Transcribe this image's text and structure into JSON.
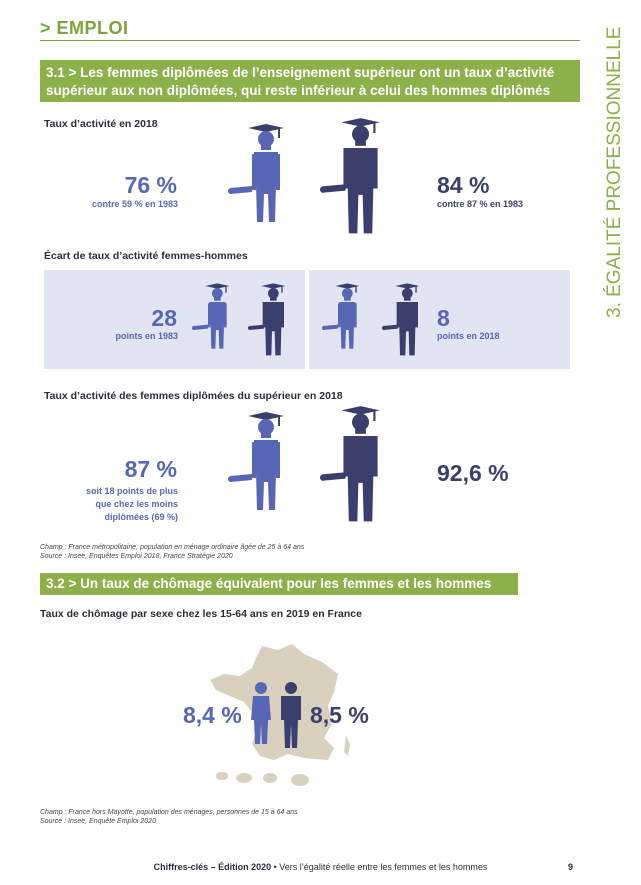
{
  "section": {
    "title": "> EMPLOI",
    "side_label": "3. ÉGALITÉ PROFESSIONNELLE"
  },
  "s31": {
    "banner": "3.1 > Les femmes diplômées de l’enseignement supérieur ont un taux d’activité supérieur aux non diplômées, qui reste inférieur à celui des hommes diplômés",
    "block1": {
      "label": "Taux d’activité en 2018",
      "women_value": "76 %",
      "women_sub": "contre 59 % en 1983",
      "men_value": "84 %",
      "men_sub": "contre 87 % en 1983"
    },
    "block2": {
      "label": "Écart de taux d’activité femmes-hommes",
      "left_value": "28",
      "left_sub": "points en 1983",
      "right_value": "8",
      "right_sub": "points en 2018"
    },
    "block3": {
      "label": "Taux d’activité des femmes diplômées du supérieur en 2018",
      "women_value": "87 %",
      "women_sub_1": "soit 18 points de plus",
      "women_sub_2": "que chez les moins",
      "women_sub_3": "diplômées (69 %)",
      "men_value": "92,6 %"
    },
    "note_1": "Champ : France métropolitaine, population en ménage ordinaire âgée de 25 à 64 ans",
    "note_2": "Source : Insee, Enquêtes Emploi 2018, France Stratégie 2020"
  },
  "s32": {
    "banner": "3.2 > Un taux de chômage équivalent pour les femmes et les hommes",
    "label": "Taux de chômage par sexe chez les 15-64 ans en 2019 en France",
    "women_value": "8,4 %",
    "men_value": "8,5 %",
    "note_1": "Champ : France hors Mayotte, population des ménages, personnes de 15 à 64 ans",
    "note_2": "Source : Insee, Enquête Emploi 2020"
  },
  "footer": {
    "bold": "Chiffres-clés – Édition 2020",
    "text": " • Vers l’égalité réelle entre les femmes et les hommes",
    "page": "9"
  },
  "colors": {
    "green": "#8cb04a",
    "women": "#5767b5",
    "men": "#3a3f6e",
    "map": "#d9d0bd",
    "panel": "#e1e4f1"
  }
}
